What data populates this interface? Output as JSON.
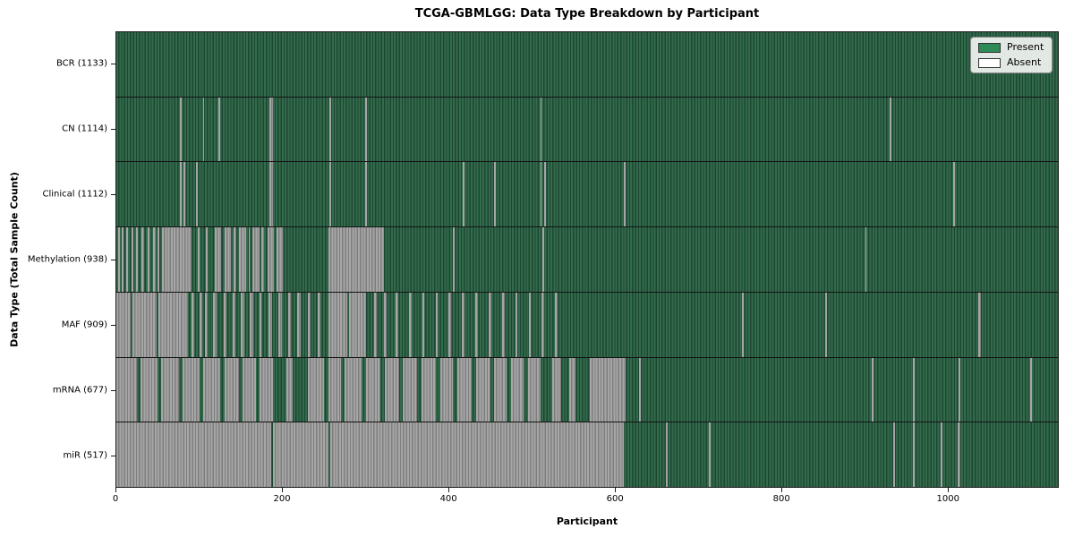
{
  "chart": {
    "title": "TCGA-GBMLGG: Data Type Breakdown by Participant",
    "xlabel": "Participant",
    "ylabel": "Data Type (Total Sample Count)",
    "legend": {
      "present": "Present",
      "absent": "Absent"
    }
  },
  "colors": {
    "legend_present_swatch": "#2e8b57",
    "legend_absent_swatch": "#ffffff",
    "present_stripe_light": "#336b4c",
    "present_stripe_dark": "#1c4732",
    "absent_stripe_light": "#a6a6a6",
    "absent_stripe_dark": "#7d7d7d",
    "axis_line": "#1a1a1a"
  },
  "chart_data": {
    "type": "heatmap",
    "title": "TCGA-GBMLGG: Data Type Breakdown by Participant",
    "xlabel": "Participant",
    "ylabel": "Data Type (Total Sample Count)",
    "states": [
      "Present",
      "Absent"
    ],
    "legend_position": "upper right",
    "x_ticks": [
      0,
      200,
      400,
      600,
      800,
      1000
    ],
    "n_participants": 1133,
    "rows": [
      {
        "label": "BCR (1133)",
        "data_type": "BCR",
        "present_count": 1133,
        "absent_segments": []
      },
      {
        "label": "CN (1114)",
        "data_type": "CN",
        "present_count": 1114,
        "absent_segments": [
          [
            77,
            79
          ],
          [
            104,
            106
          ],
          [
            123,
            125
          ],
          [
            184,
            188
          ],
          [
            256,
            258
          ],
          [
            299,
            302
          ],
          [
            510,
            512
          ],
          [
            930,
            933
          ]
        ]
      },
      {
        "label": "Clinical (1112)",
        "data_type": "Clinical",
        "present_count": 1112,
        "absent_segments": [
          [
            77,
            79
          ],
          [
            81,
            83
          ],
          [
            96,
            98
          ],
          [
            184,
            188
          ],
          [
            256,
            258
          ],
          [
            299,
            302
          ],
          [
            417,
            419
          ],
          [
            455,
            457
          ],
          [
            510,
            512
          ],
          [
            515,
            517
          ],
          [
            611,
            613
          ],
          [
            1007,
            1009
          ]
        ]
      },
      {
        "label": "Methylation (938)",
        "data_type": "Methylation",
        "present_count": 938,
        "absent_segments": [
          [
            2,
            4
          ],
          [
            7,
            9
          ],
          [
            12,
            14
          ],
          [
            18,
            20
          ],
          [
            24,
            26
          ],
          [
            30,
            33
          ],
          [
            38,
            40
          ],
          [
            44,
            47
          ],
          [
            50,
            52
          ],
          [
            55,
            90
          ],
          [
            98,
            100
          ],
          [
            108,
            110
          ],
          [
            118,
            126
          ],
          [
            130,
            138
          ],
          [
            141,
            144
          ],
          [
            148,
            156
          ],
          [
            159,
            161
          ],
          [
            164,
            172
          ],
          [
            175,
            178
          ],
          [
            182,
            190
          ],
          [
            193,
            200
          ],
          [
            255,
            322
          ],
          [
            405,
            407
          ],
          [
            513,
            515
          ],
          [
            901,
            903
          ]
        ]
      },
      {
        "label": "MAF (909)",
        "data_type": "MAF",
        "present_count": 909,
        "absent_segments": [
          [
            0,
            17
          ],
          [
            19,
            49
          ],
          [
            51,
            86
          ],
          [
            90,
            94
          ],
          [
            100,
            103
          ],
          [
            107,
            110
          ],
          [
            116,
            121
          ],
          [
            129,
            133
          ],
          [
            140,
            143
          ],
          [
            150,
            154
          ],
          [
            160,
            165
          ],
          [
            172,
            175
          ],
          [
            183,
            187
          ],
          [
            195,
            199
          ],
          [
            207,
            210
          ],
          [
            218,
            222
          ],
          [
            230,
            234
          ],
          [
            242,
            246
          ],
          [
            255,
            278
          ],
          [
            280,
            301
          ],
          [
            310,
            313
          ],
          [
            322,
            325
          ],
          [
            336,
            339
          ],
          [
            352,
            355
          ],
          [
            368,
            371
          ],
          [
            384,
            387
          ],
          [
            400,
            403
          ],
          [
            416,
            419
          ],
          [
            432,
            435
          ],
          [
            448,
            451
          ],
          [
            464,
            467
          ],
          [
            480,
            483
          ],
          [
            496,
            499
          ],
          [
            512,
            515
          ],
          [
            528,
            531
          ],
          [
            753,
            755
          ],
          [
            853,
            855
          ],
          [
            1037,
            1040
          ]
        ]
      },
      {
        "label": "mRNA (677)",
        "data_type": "mRNA",
        "present_count": 677,
        "absent_segments": [
          [
            0,
            25
          ],
          [
            29,
            50
          ],
          [
            54,
            75
          ],
          [
            80,
            100
          ],
          [
            105,
            125
          ],
          [
            130,
            148
          ],
          [
            152,
            168
          ],
          [
            172,
            188
          ],
          [
            205,
            212
          ],
          [
            230,
            250
          ],
          [
            255,
            270
          ],
          [
            275,
            295
          ],
          [
            300,
            318
          ],
          [
            323,
            340
          ],
          [
            345,
            362
          ],
          [
            367,
            385
          ],
          [
            390,
            405
          ],
          [
            410,
            428
          ],
          [
            433,
            450
          ],
          [
            455,
            470
          ],
          [
            475,
            490
          ],
          [
            495,
            510
          ],
          [
            525,
            535
          ],
          [
            545,
            552
          ],
          [
            570,
            613
          ],
          [
            629,
            631
          ],
          [
            909,
            911
          ],
          [
            959,
            961
          ],
          [
            1013,
            1016
          ],
          [
            1100,
            1102
          ]
        ]
      },
      {
        "label": "miR (517)",
        "data_type": "miR",
        "present_count": 517,
        "absent_segments": [
          [
            0,
            186
          ],
          [
            188,
            255
          ],
          [
            257,
            611
          ],
          [
            661,
            663
          ],
          [
            713,
            715
          ],
          [
            935,
            937
          ],
          [
            959,
            961
          ],
          [
            992,
            994
          ],
          [
            1012,
            1016
          ]
        ]
      }
    ]
  }
}
